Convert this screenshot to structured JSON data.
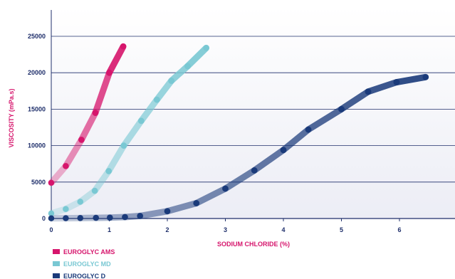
{
  "chart_data": {
    "type": "line",
    "title": "",
    "xlabel": "SODIUM CHLORIDE (%)",
    "ylabel": "VISCOSITY (mPa.s)",
    "xlim": [
      0,
      7
    ],
    "ylim": [
      0,
      25000
    ],
    "xticks": [
      "0",
      "1",
      "2",
      "3",
      "4",
      "5",
      "6"
    ],
    "yticks": [
      "0",
      "5000",
      "10000",
      "15000",
      "20000",
      "25000"
    ],
    "grid": true,
    "legend_position": "bottom-left",
    "colors": {
      "axis": "#1f2f6b",
      "grid": "#1f2f6b",
      "xlabel": "#d6156c",
      "ylabel": "#d6156c"
    },
    "series": [
      {
        "name": "EUROGLYC AMS",
        "color": "#d6156c",
        "x": [
          0,
          0.25,
          0.52,
          0.76,
          1.0,
          1.24
        ],
        "y": [
          4900,
          7200,
          10800,
          14500,
          20000,
          23600
        ]
      },
      {
        "name": "EUROGLYC MD",
        "color": "#79c8d3",
        "x": [
          0,
          0.25,
          0.5,
          0.75,
          0.99,
          1.25,
          1.55,
          1.82,
          2.07,
          2.35,
          2.67
        ],
        "y": [
          700,
          1300,
          2300,
          3800,
          6500,
          10000,
          13400,
          16300,
          18900,
          20900,
          23400
        ]
      },
      {
        "name": "EUROGLYC D",
        "color": "#1a3a7a",
        "x": [
          0,
          0.25,
          0.5,
          0.77,
          1.01,
          1.27,
          1.53,
          2.0,
          2.5,
          3.0,
          3.5,
          4.0,
          4.43,
          5.0,
          5.46,
          5.95,
          6.45
        ],
        "y": [
          30,
          40,
          60,
          90,
          120,
          200,
          350,
          1000,
          2100,
          4100,
          6600,
          9400,
          12200,
          15000,
          17400,
          18700,
          19400
        ]
      }
    ]
  }
}
